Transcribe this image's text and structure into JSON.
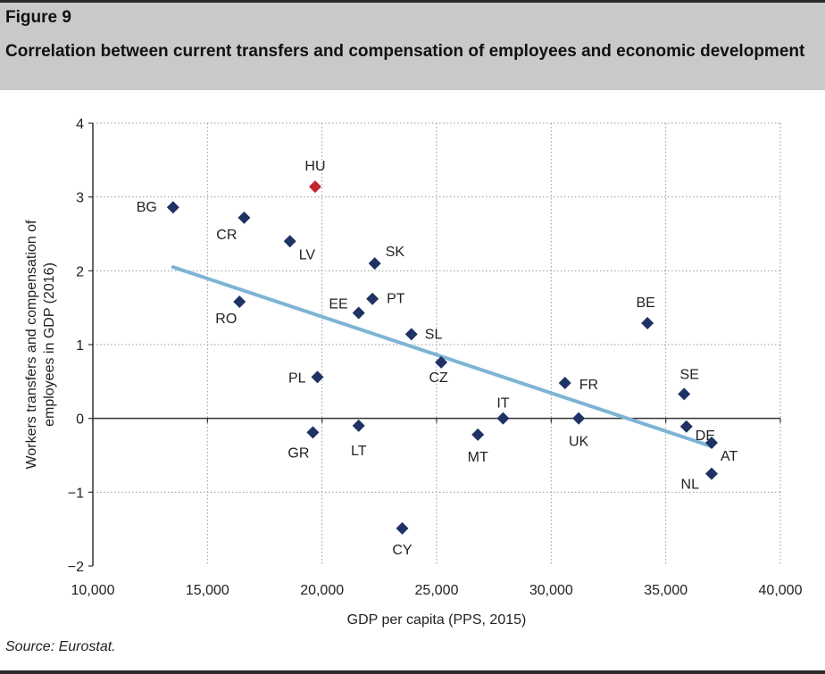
{
  "figure": {
    "label": "Figure 9",
    "title": "Correlation between current transfers and compensation of employees and economic development",
    "source": "Source: Eurostat."
  },
  "chart_data": {
    "type": "scatter",
    "xlabel": "GDP per capita (PPS, 2015)",
    "ylabel_lines": [
      "Workers transfers and compensation of",
      "employees in GDP (2016)"
    ],
    "xlim": [
      10000,
      40000
    ],
    "ylim": [
      -2,
      4
    ],
    "xticks": [
      10000,
      15000,
      20000,
      25000,
      30000,
      35000,
      40000
    ],
    "xtick_labels": [
      "10,000",
      "15,000",
      "20,000",
      "25,000",
      "30,000",
      "35,000",
      "40,000"
    ],
    "yticks": [
      -2,
      -1,
      0,
      1,
      2,
      3,
      4
    ],
    "ytick_labels": [
      "−2",
      "−1",
      "0",
      "1",
      "2",
      "3",
      "4"
    ],
    "grid": true,
    "colors": {
      "point": "#1f3264",
      "highlight": "#c0272d",
      "trend": "#7fb3d5",
      "grid": "#9a9a9a"
    },
    "points": [
      {
        "label": "BG",
        "x": 13500,
        "y": 2.86
      },
      {
        "label": "HU",
        "x": 19700,
        "y": 3.14,
        "highlight": true
      },
      {
        "label": "CR",
        "x": 16600,
        "y": 2.72
      },
      {
        "label": "LV",
        "x": 18600,
        "y": 2.4
      },
      {
        "label": "SK",
        "x": 22300,
        "y": 2.1
      },
      {
        "label": "RO",
        "x": 16400,
        "y": 1.58
      },
      {
        "label": "EE",
        "x": 21600,
        "y": 1.43
      },
      {
        "label": "PT",
        "x": 22200,
        "y": 1.62
      },
      {
        "label": "SL",
        "x": 23900,
        "y": 1.14
      },
      {
        "label": "CZ",
        "x": 25200,
        "y": 0.76
      },
      {
        "label": "PL",
        "x": 19800,
        "y": 0.56
      },
      {
        "label": "IT",
        "x": 27900,
        "y": 0.0
      },
      {
        "label": "MT",
        "x": 26800,
        "y": -0.22
      },
      {
        "label": "FR",
        "x": 30600,
        "y": 0.48
      },
      {
        "label": "UK",
        "x": 31200,
        "y": 0.0
      },
      {
        "label": "BE",
        "x": 34200,
        "y": 1.29
      },
      {
        "label": "SE",
        "x": 35800,
        "y": 0.33
      },
      {
        "label": "DE",
        "x": 35900,
        "y": -0.11
      },
      {
        "label": "AT",
        "x": 37000,
        "y": -0.33
      },
      {
        "label": "NL",
        "x": 37000,
        "y": -0.75
      },
      {
        "label": "GR",
        "x": 19600,
        "y": -0.19
      },
      {
        "label": "LT",
        "x": 21600,
        "y": -0.1
      },
      {
        "label": "CY",
        "x": 23500,
        "y": -1.49
      }
    ],
    "trendline": {
      "x": [
        13500,
        37000
      ],
      "y": [
        2.05,
        -0.38
      ]
    }
  }
}
